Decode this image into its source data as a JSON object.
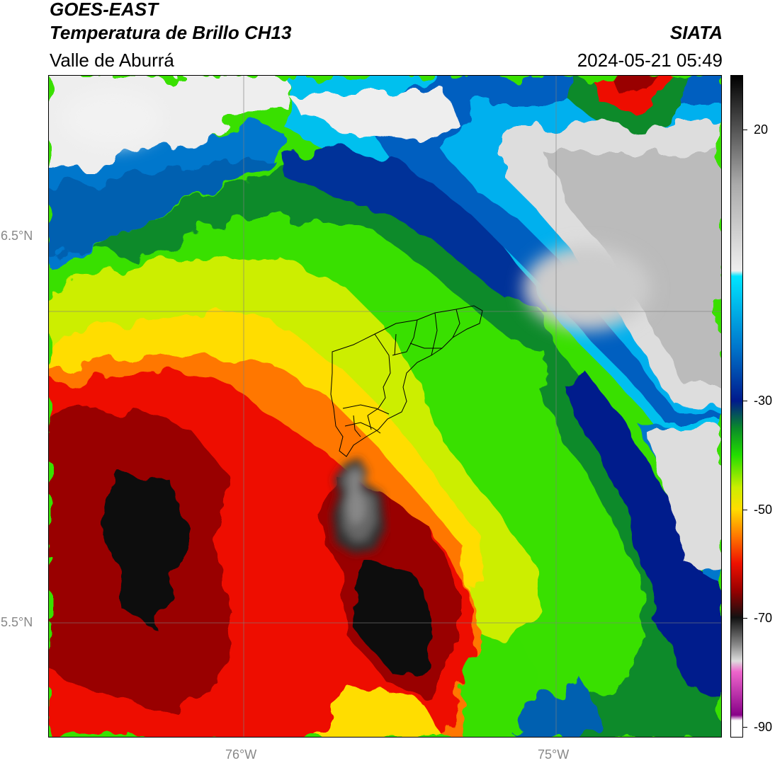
{
  "header": {
    "satellite": "GOES-EAST",
    "product": "Temperatura de Brillo CH13",
    "region": "Valle de Aburrá",
    "organization": "SIATA",
    "timestamp": "2024-05-21 05:49"
  },
  "map": {
    "lat_labels": [
      "6.5°N",
      "5.5°N"
    ],
    "lon_labels": [
      "76°W",
      "75°W"
    ],
    "extent": {
      "lon": [
        -76.62,
        -74.46
      ],
      "lat": [
        5.13,
        7.25
      ]
    },
    "gridlines": true
  },
  "colorbar": {
    "ticks": [
      {
        "label": "20",
        "value": 20
      },
      {
        "label": "-30",
        "value": -30
      },
      {
        "label": "-50",
        "value": -50
      },
      {
        "label": "-70",
        "value": -70
      },
      {
        "label": "-90",
        "value": -90
      }
    ],
    "stops": [
      {
        "value": 30,
        "color": "#000000"
      },
      {
        "value": 20,
        "color": "#555555"
      },
      {
        "value": 10,
        "color": "#aaaaaa"
      },
      {
        "value": -6,
        "color": "#eeeeee"
      },
      {
        "value": -7,
        "color": "#00e5ff"
      },
      {
        "value": -20,
        "color": "#0077cc"
      },
      {
        "value": -30,
        "color": "#001a8c"
      },
      {
        "value": -35,
        "color": "#0a8a2a"
      },
      {
        "value": -40,
        "color": "#22dd00"
      },
      {
        "value": -46,
        "color": "#ccee00"
      },
      {
        "value": -50,
        "color": "#ffdd00"
      },
      {
        "value": -55,
        "color": "#ff7700"
      },
      {
        "value": -60,
        "color": "#ee1100"
      },
      {
        "value": -65,
        "color": "#990000"
      },
      {
        "value": -70,
        "color": "#111111"
      },
      {
        "value": -75,
        "color": "#888888"
      },
      {
        "value": -78,
        "color": "#dddddd"
      },
      {
        "value": -80,
        "color": "#ee66cc"
      },
      {
        "value": -88,
        "color": "#880088"
      },
      {
        "value": -89,
        "color": "#ffffff"
      }
    ]
  }
}
